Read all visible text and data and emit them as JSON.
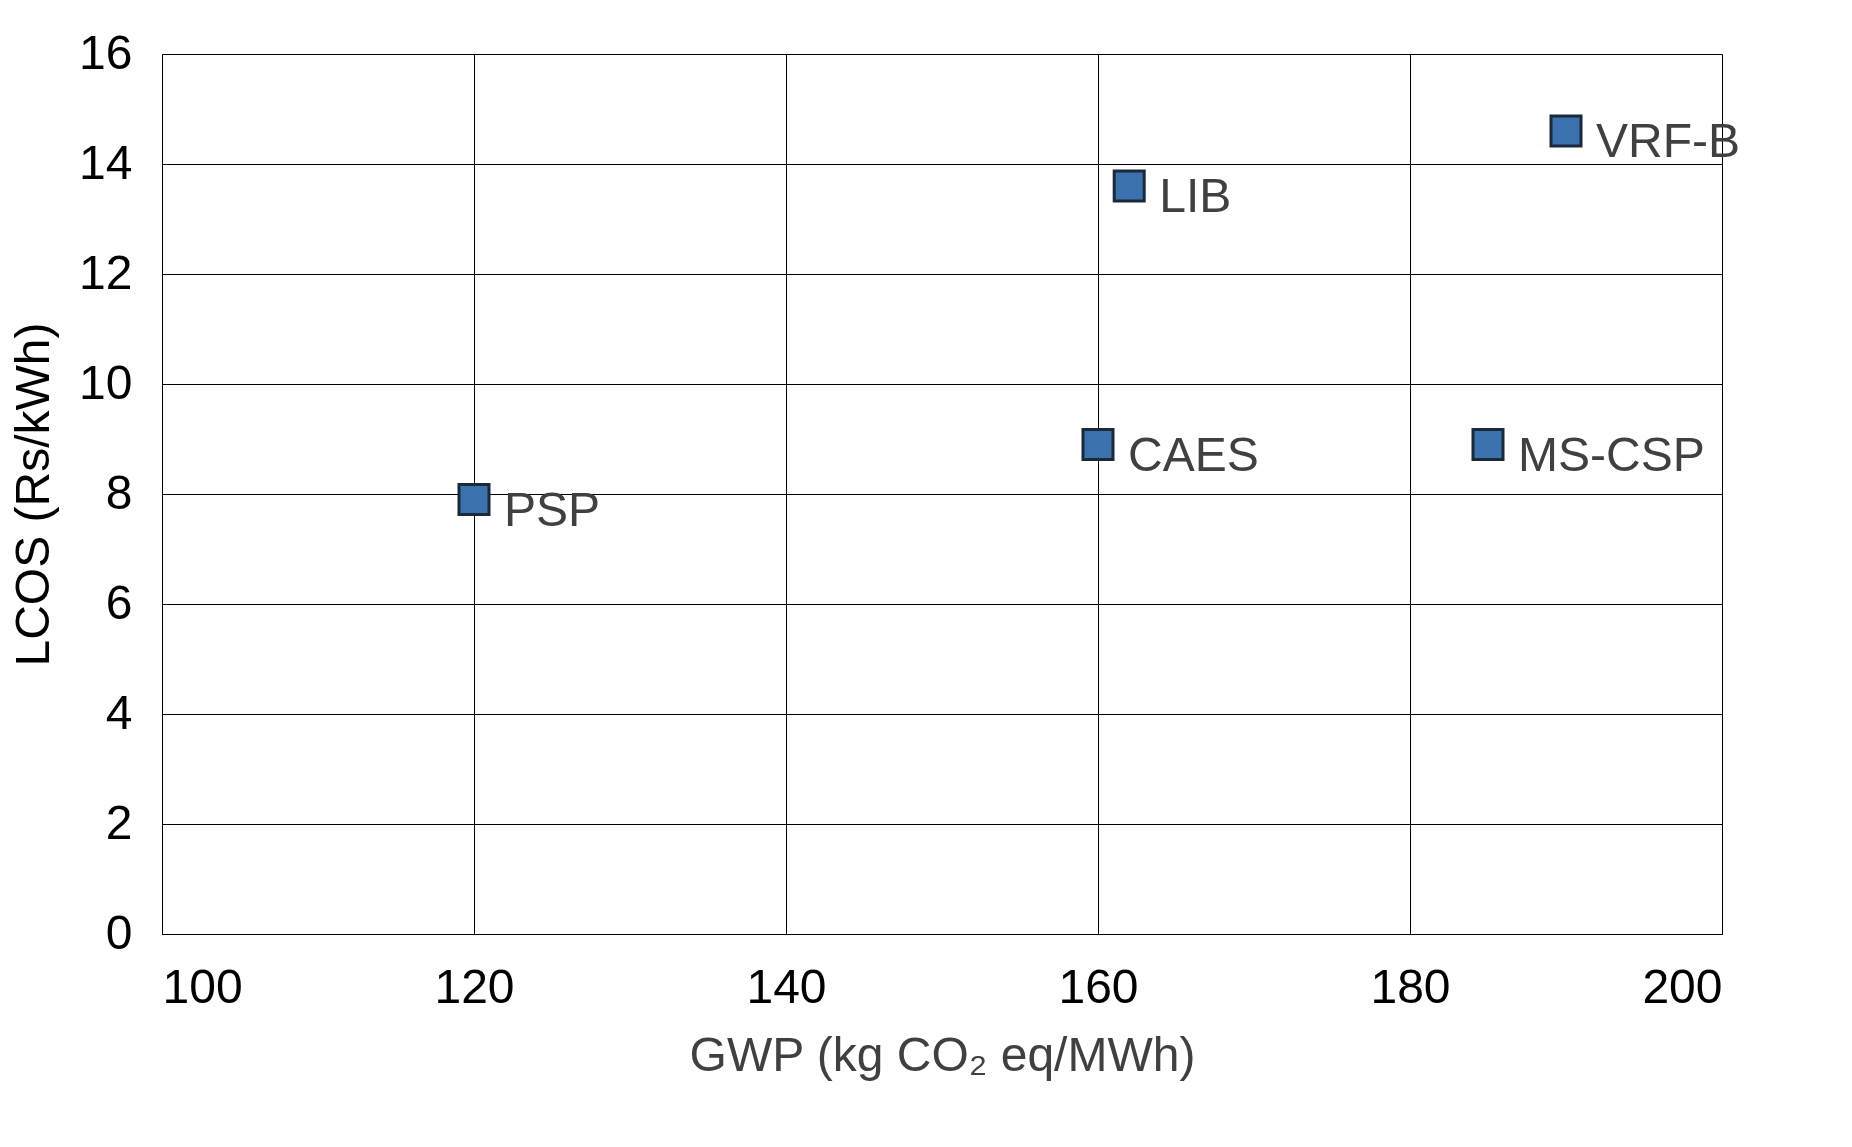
{
  "chart_data": {
    "type": "scatter",
    "xlabel": "GWP (kg CO₂ eq/MWh)",
    "ylabel": "LCOS (Rs/kWh)",
    "x": [
      120,
      160,
      162,
      185,
      190
    ],
    "series": [
      {
        "color": "#3b72ad",
        "values": [
          7.9,
          8.9,
          13.6,
          8.9,
          14.6
        ]
      }
    ],
    "annotations": [
      {
        "text": "PSP",
        "x": 120,
        "y": 7.9
      },
      {
        "text": "CAES",
        "x": 160,
        "y": 8.9
      },
      {
        "text": "LIB",
        "x": 162,
        "y": 13.6
      },
      {
        "text": "MS-CSP",
        "x": 185,
        "y": 8.9
      },
      {
        "text": "VRF-B",
        "x": 190,
        "y": 14.6
      }
    ],
    "xlim": [
      100,
      200
    ],
    "xticks": [
      100,
      120,
      140,
      160,
      180,
      200
    ],
    "ylim": [
      0,
      16
    ],
    "yticks": [
      0,
      2,
      4,
      6,
      8,
      10,
      12,
      14,
      16
    ],
    "grid": true,
    "marker": "square"
  }
}
